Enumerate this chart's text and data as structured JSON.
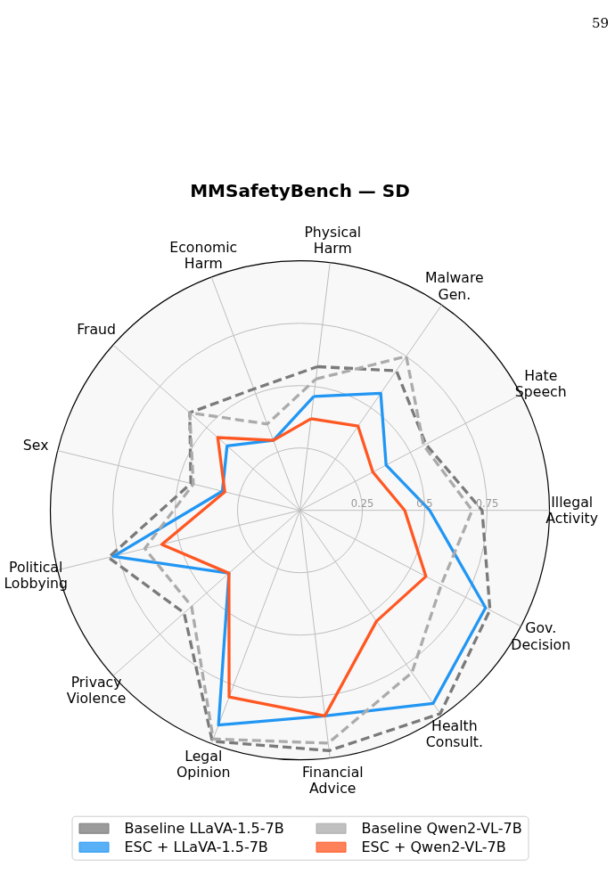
{
  "chart_data": {
    "type": "radar",
    "title": "MMSafetyBench — SD",
    "categories": [
      "Physical Harm",
      "Malware Gen.",
      "Hate Speech",
      "Illegal Activity",
      "Gov. Decision",
      "Health Consult.",
      "Financial Advice",
      "Legal Opinion",
      "Privacy Violence",
      "Political Lobbying",
      "Sex",
      "Fraud",
      "Economic Harm"
    ],
    "series": [
      {
        "name": "Baseline LLaVA-1.5-7B",
        "color": "#7a7a7a",
        "line_style": "dashed",
        "values": [
          0.58,
          0.68,
          0.57,
          0.73,
          0.86,
          0.99,
          0.97,
          0.99,
          0.62,
          0.79,
          0.45,
          0.59,
          0.52
        ]
      },
      {
        "name": "ESC + LLaVA-1.5-7B",
        "color": "#2196f3",
        "line_style": "solid",
        "values": [
          0.46,
          0.57,
          0.39,
          0.52,
          0.84,
          0.94,
          0.83,
          0.92,
          0.38,
          0.77,
          0.32,
          0.39,
          0.3
        ]
      },
      {
        "name": "Baseline Qwen2-VL-7B",
        "color": "#ababab",
        "line_style": "dashed",
        "values": [
          0.53,
          0.75,
          0.56,
          0.69,
          0.64,
          0.79,
          0.94,
          0.98,
          0.58,
          0.64,
          0.44,
          0.59,
          0.37
        ]
      },
      {
        "name": "ESC + Qwen2-VL-7B",
        "color": "#ff5722",
        "line_style": "solid",
        "values": [
          0.37,
          0.41,
          0.33,
          0.42,
          0.57,
          0.54,
          0.83,
          0.8,
          0.38,
          0.57,
          0.31,
          0.44,
          0.3
        ]
      }
    ],
    "ylim": [
      0,
      1
    ],
    "yticks": [
      0.25,
      0.5,
      0.75
    ],
    "grid": true,
    "legend": "bottom",
    "annotations": [
      "59"
    ]
  }
}
